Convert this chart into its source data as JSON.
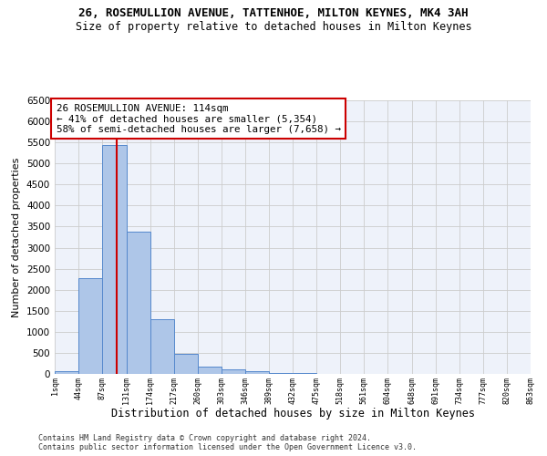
{
  "title1": "26, ROSEMULLION AVENUE, TATTENHOE, MILTON KEYNES, MK4 3AH",
  "title2": "Size of property relative to detached houses in Milton Keynes",
  "xlabel": "Distribution of detached houses by size in Milton Keynes",
  "ylabel": "Number of detached properties",
  "footer1": "Contains HM Land Registry data © Crown copyright and database right 2024.",
  "footer2": "Contains public sector information licensed under the Open Government Licence v3.0.",
  "annotation_line1": "26 ROSEMULLION AVENUE: 114sqm",
  "annotation_line2": "← 41% of detached houses are smaller (5,354)",
  "annotation_line3": "58% of semi-detached houses are larger (7,658) →",
  "property_size_sqm": 114,
  "bar_color": "#aec6e8",
  "bar_edge_color": "#5588cc",
  "property_line_color": "#cc0000",
  "annotation_box_color": "#cc0000",
  "grid_color": "#cccccc",
  "bg_color": "#eef2fa",
  "fig_bg_color": "#ffffff",
  "ylim": [
    0,
    6500
  ],
  "yticks": [
    0,
    500,
    1000,
    1500,
    2000,
    2500,
    3000,
    3500,
    4000,
    4500,
    5000,
    5500,
    6000,
    6500
  ],
  "bin_edges": [
    1,
    44,
    87,
    131,
    174,
    217,
    260,
    303,
    346,
    389,
    432,
    475,
    518,
    561,
    604,
    648,
    691,
    734,
    777,
    820,
    863
  ],
  "bar_heights": [
    75,
    2270,
    5430,
    3370,
    1310,
    475,
    165,
    100,
    55,
    30,
    15,
    8,
    5,
    3,
    2,
    1,
    1,
    0,
    0,
    0
  ]
}
